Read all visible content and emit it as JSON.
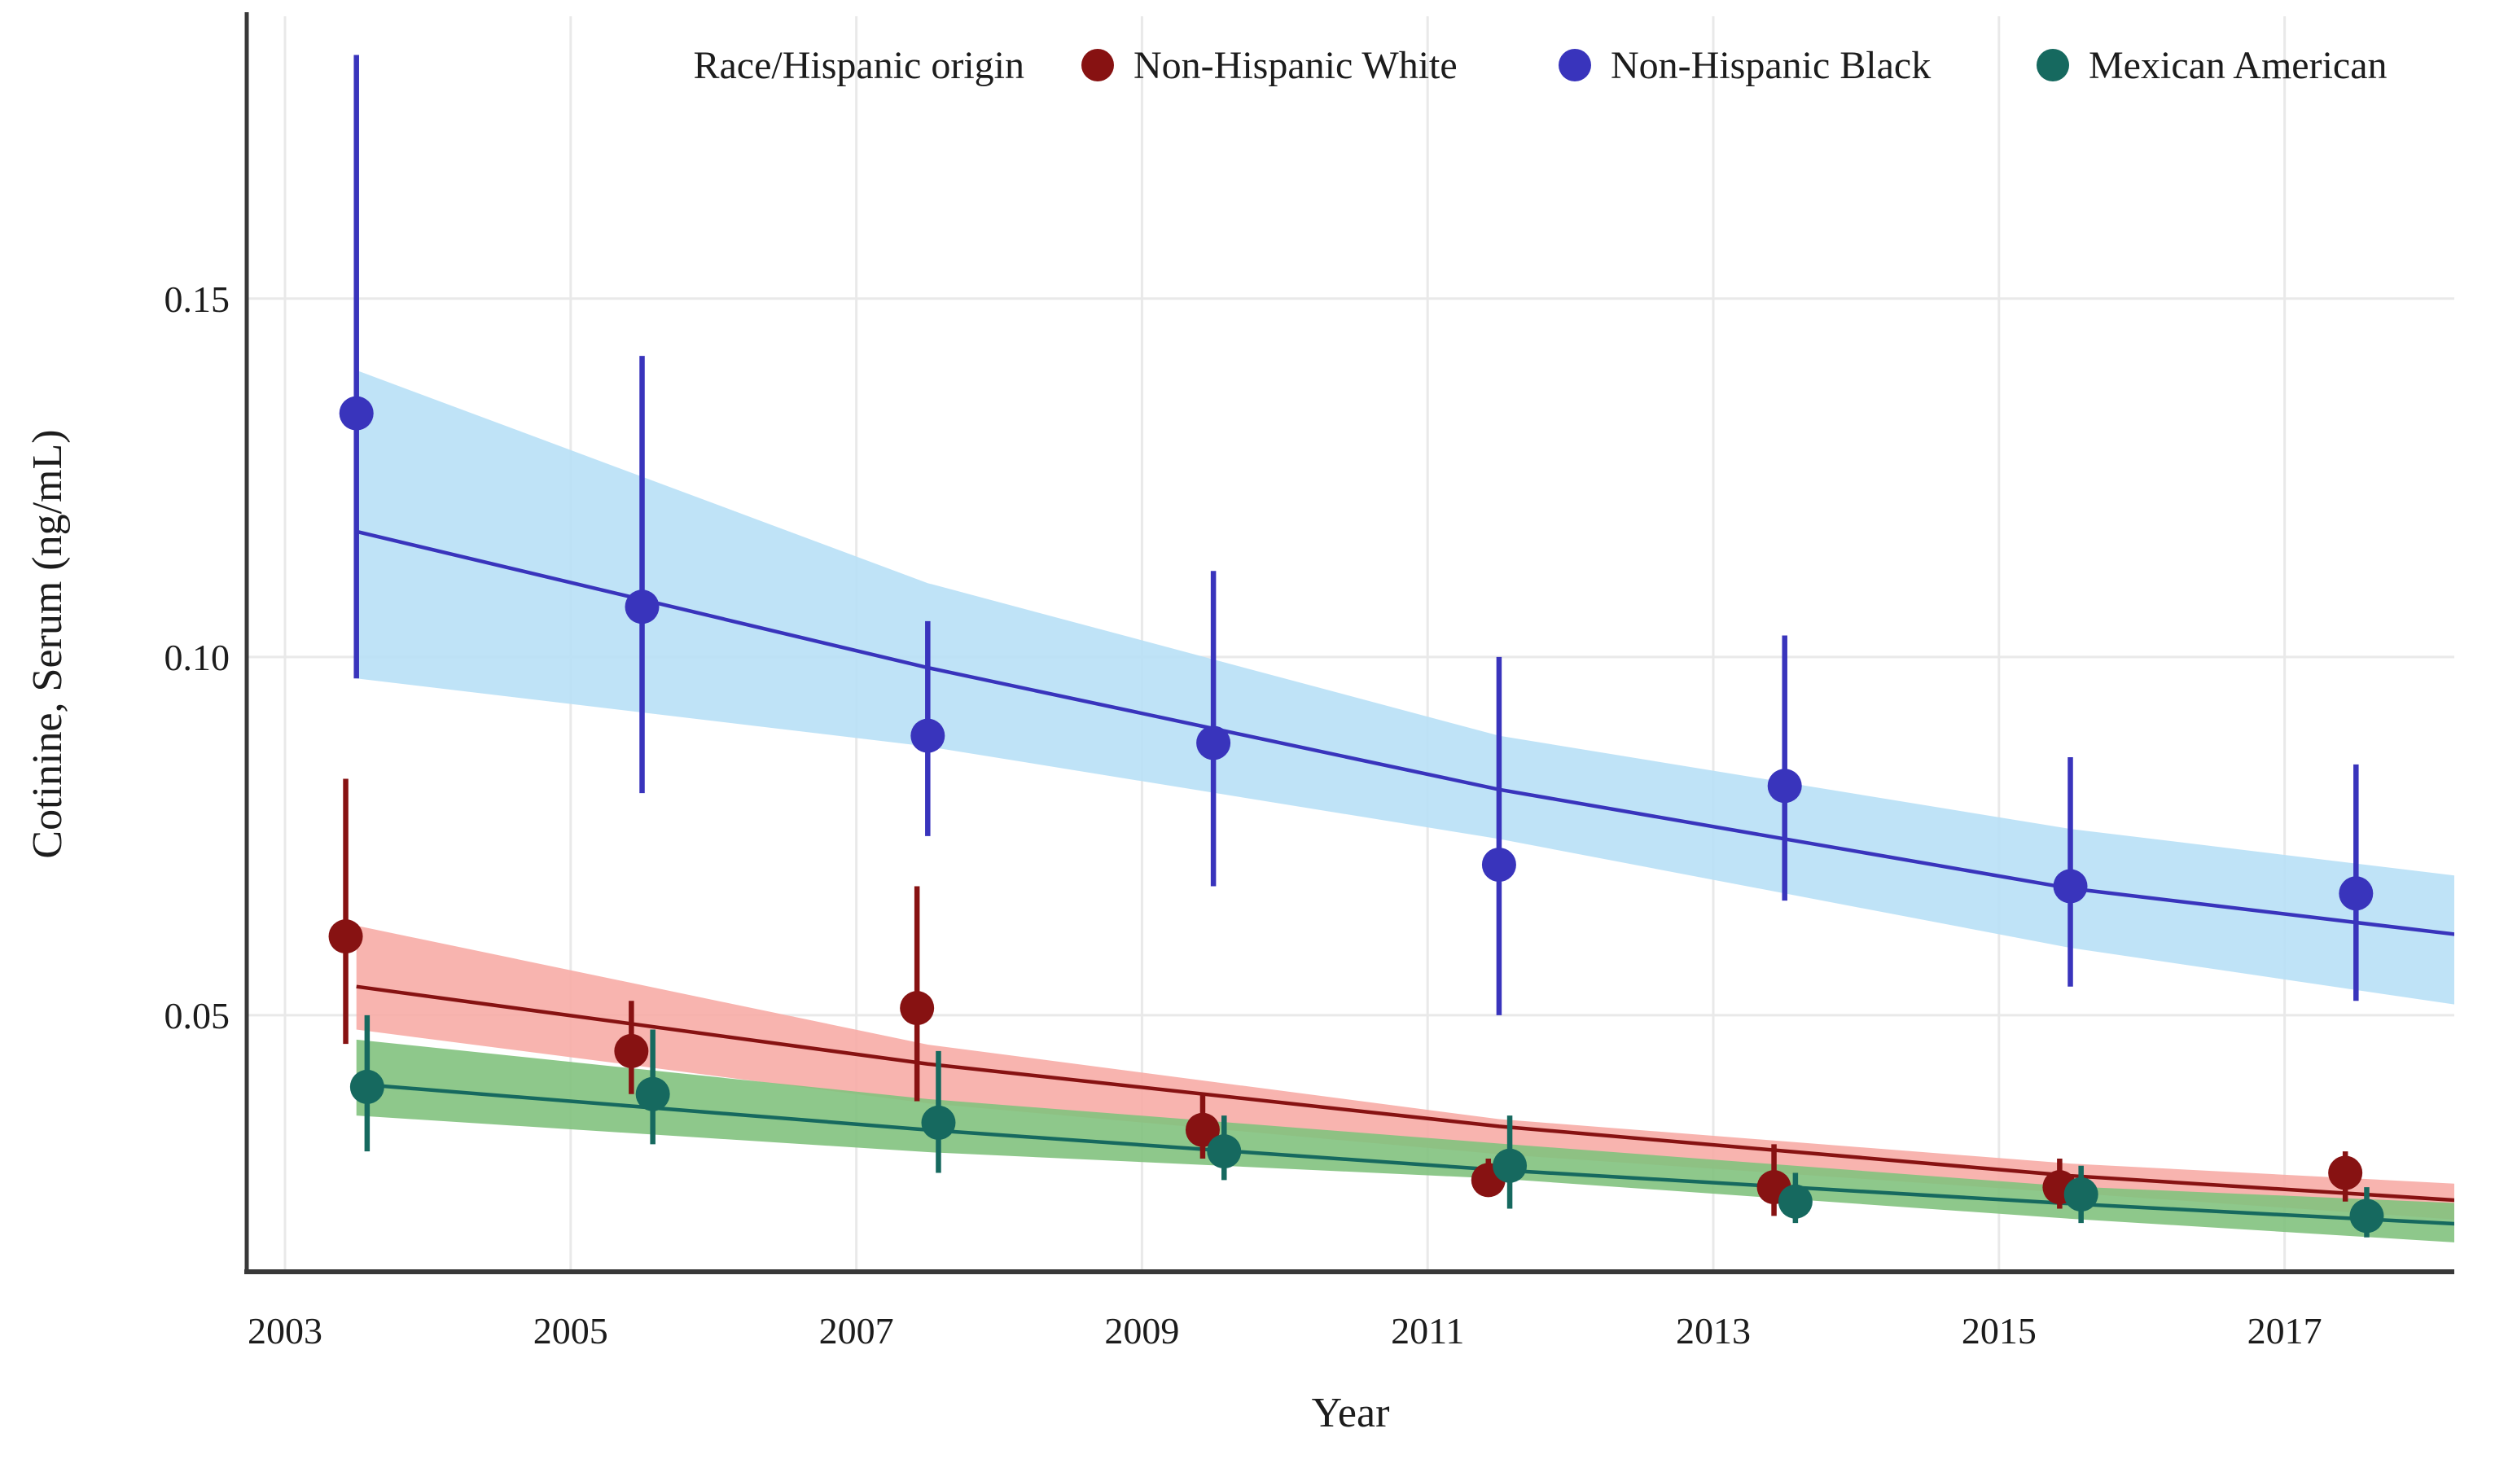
{
  "chart_data": {
    "type": "scatter",
    "title": "",
    "xlabel": "Year",
    "ylabel": "Cotinine, Serum (ng/mL)",
    "x_ticks": [
      2003,
      2005,
      2007,
      2009,
      2011,
      2013,
      2015,
      2017
    ],
    "y_ticks": [
      0.05,
      0.1,
      0.15
    ],
    "y_tick_labels": [
      "0.05",
      "0.10",
      "0.15"
    ],
    "xlim": [
      2002.732,
      2018.188
    ],
    "ylim": [
      0.0142,
      0.1894
    ],
    "grid": true,
    "legend_position": "top",
    "legend_title": "Race/Hispanic origin",
    "colors": {
      "text": "#1c1c1c",
      "axis": "#383838",
      "gridline": "#e9e9e9",
      "background": "#ffffff"
    },
    "series": [
      {
        "name": "Non-Hispanic White",
        "color": "#871212",
        "ribbon_color": "#f7aca6",
        "dodge_years": -0.075,
        "x": [
          2003.5,
          2005.5,
          2007.5,
          2009.5,
          2011.5,
          2013.5,
          2015.5,
          2017.5
        ],
        "values": [
          0.061,
          0.045,
          0.051,
          0.034,
          0.027,
          0.026,
          0.026,
          0.028
        ],
        "ci_low": [
          0.046,
          0.039,
          0.038,
          0.03,
          0.025,
          0.022,
          0.023,
          0.024
        ],
        "ci_high": [
          0.083,
          0.052,
          0.068,
          0.039,
          0.03,
          0.032,
          0.03,
          0.031
        ],
        "trend_x": [
          2003.5,
          2007.5,
          2011.5,
          2015.5,
          2018.19
        ],
        "trend": [
          0.054,
          0.0432,
          0.0345,
          0.0276,
          0.0242
        ],
        "ribbon_low": [
          0.048,
          0.0377,
          0.0306,
          0.0252,
          0.0215
        ],
        "ribbon_high": [
          0.0625,
          0.0459,
          0.0355,
          0.0293,
          0.0265
        ]
      },
      {
        "name": "Non-Hispanic Black",
        "color": "#3934bc",
        "ribbon_color": "#b8e0f6",
        "dodge_years": 0,
        "x": [
          2003.5,
          2005.5,
          2007.5,
          2009.5,
          2011.5,
          2013.5,
          2015.5,
          2017.5
        ],
        "values": [
          0.134,
          0.107,
          0.089,
          0.088,
          0.071,
          0.082,
          0.068,
          0.067
        ],
        "ci_low": [
          0.097,
          0.081,
          0.075,
          0.068,
          0.05,
          0.066,
          0.054,
          0.052
        ],
        "ci_high": [
          0.184,
          0.142,
          0.105,
          0.112,
          0.1,
          0.103,
          0.086,
          0.085
        ],
        "trend_x": [
          2003.5,
          2007.5,
          2011.5,
          2015.5,
          2018.19
        ],
        "trend": [
          0.1175,
          0.0985,
          0.0815,
          0.0677,
          0.0613
        ],
        "ribbon_low": [
          0.097,
          0.0875,
          0.0746,
          0.0594,
          0.0515
        ],
        "ribbon_high": [
          0.14,
          0.1103,
          0.089,
          0.076,
          0.0695
        ]
      },
      {
        "name": "Mexican American",
        "color": "#16695f",
        "ribbon_color": "#82c27e",
        "dodge_years": 0.075,
        "x": [
          2003.5,
          2005.5,
          2007.5,
          2009.5,
          2011.5,
          2013.5,
          2015.5,
          2017.5
        ],
        "values": [
          0.04,
          0.039,
          0.035,
          0.031,
          0.029,
          0.024,
          0.025,
          0.022
        ],
        "ci_low": [
          0.031,
          0.032,
          0.028,
          0.027,
          0.023,
          0.021,
          0.021,
          0.019
        ],
        "ci_high": [
          0.05,
          0.048,
          0.045,
          0.036,
          0.036,
          0.028,
          0.029,
          0.026
        ],
        "trend_x": [
          2003.5,
          2007.5,
          2011.5,
          2015.5,
          2018.19
        ],
        "trend": [
          0.0404,
          0.034,
          0.0284,
          0.0237,
          0.0209
        ],
        "ribbon_low": [
          0.036,
          0.0309,
          0.0272,
          0.0216,
          0.0183
        ],
        "ribbon_high": [
          0.0466,
          0.0383,
          0.0321,
          0.0261,
          0.0238
        ]
      }
    ]
  }
}
